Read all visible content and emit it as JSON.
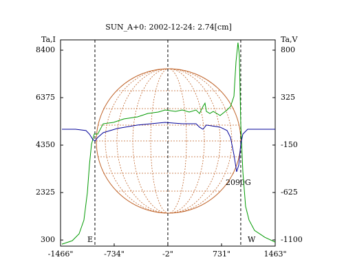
{
  "chart_data": {
    "type": "line",
    "title": "SUN_A+0: 2002-12-24: 2.74[cm]",
    "ylabel": "Ta,I",
    "y2label": "Ta,V",
    "annotations": [
      "E",
      "W",
      "2090G"
    ],
    "xlim": [
      -1466,
      1463
    ],
    "xticks": [
      {
        "value": -1466,
        "label": "-1466\""
      },
      {
        "value": -734,
        "label": "-734\""
      },
      {
        "value": -2,
        "label": "-2\""
      },
      {
        "value": 731,
        "label": "731\""
      },
      {
        "value": 1463,
        "label": "1463\""
      }
    ],
    "ylim": [
      40,
      8840
    ],
    "yticks": [
      300,
      2325,
      4350,
      6375,
      8400
    ],
    "y2lim": [
      -1162,
      903
    ],
    "y2ticks": [
      800,
      325,
      -150,
      -625,
      -1100
    ],
    "vlines": [
      -997,
      -2,
      993
    ],
    "series": [
      {
        "color": "#009900",
        "x": [
          -1447,
          -1306,
          -1213,
          -1147,
          -1100,
          -1072,
          -1044,
          -1006,
          -959,
          -884,
          -743,
          -602,
          -415,
          -274,
          -133,
          -39,
          102,
          196,
          290,
          383,
          430,
          477,
          505,
          524,
          571,
          618,
          712,
          806,
          853,
          900,
          928,
          955,
          974,
          993,
          1022,
          1059,
          1106,
          1181,
          1322,
          1463
        ],
        "values": [
          124,
          271,
          564,
          1151,
          2325,
          3499,
          4380,
          4820,
          4820,
          5260,
          5319,
          5466,
          5554,
          5700,
          5759,
          5847,
          5788,
          5847,
          5759,
          5847,
          5700,
          5994,
          6141,
          5788,
          5700,
          5788,
          5613,
          5847,
          5994,
          6434,
          7902,
          8723,
          8195,
          5260,
          3206,
          1738,
          1151,
          711,
          417,
          212
        ]
      },
      {
        "color": "#000099",
        "axis": "y2",
        "x": [
          -1447,
          -1260,
          -1119,
          -1072,
          -1025,
          -997,
          -959,
          -884,
          -696,
          -415,
          -39,
          196,
          383,
          430,
          477,
          524,
          712,
          806,
          853,
          900,
          937,
          966,
          993,
          1022,
          1087,
          1275,
          1463
        ],
        "values": [
          8,
          8,
          -5,
          -40,
          -95,
          -109,
          -74,
          -26,
          15,
          50,
          77,
          63,
          63,
          29,
          8,
          50,
          29,
          -5,
          -74,
          -246,
          -418,
          -350,
          -143,
          -40,
          8,
          8,
          8
        ]
      }
    ]
  }
}
